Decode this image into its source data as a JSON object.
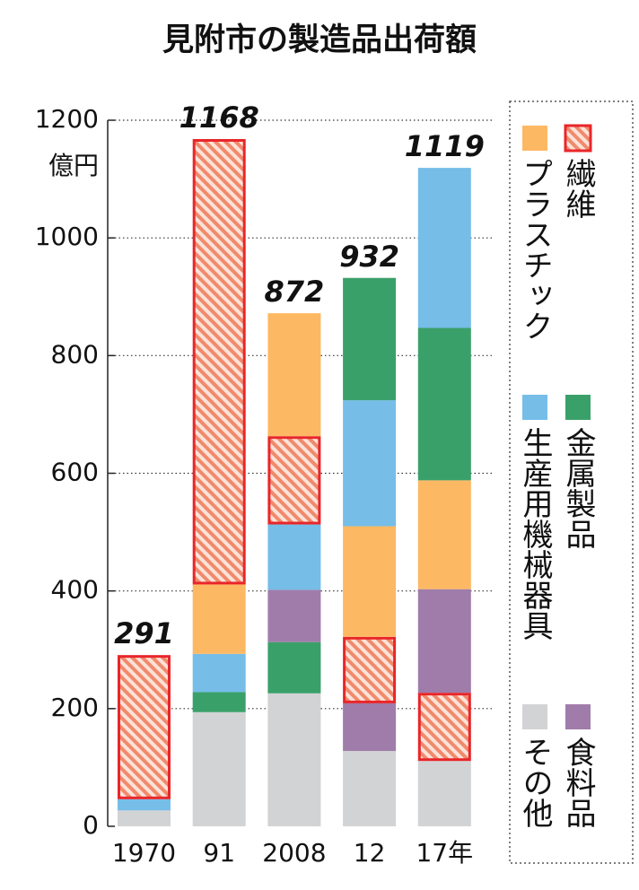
{
  "chart_data": {
    "type": "stacked_bar",
    "title": "見附市の製造品出荷額",
    "y_unit": "億円",
    "categories": [
      "1970",
      "91",
      "2008",
      "12",
      "17年"
    ],
    "series": [
      {
        "name": "繊維",
        "color": "#e8262a",
        "pattern": "hatch",
        "values": [
          245,
          757,
          150,
          113,
          116
        ]
      },
      {
        "name": "プラスチック",
        "color": "#fdb863",
        "values": [
          null,
          118,
          209,
          188,
          185
        ]
      },
      {
        "name": "金属製品",
        "color": "#3aa06a",
        "values": [
          null,
          34,
          87,
          208,
          259
        ]
      },
      {
        "name": "生産用機械器具",
        "color": "#76bde8",
        "values": [
          19,
          65,
          111,
          214,
          272
        ]
      },
      {
        "name": "食料品",
        "color": "#a07cab",
        "values": [
          null,
          null,
          89,
          81,
          176
        ]
      },
      {
        "name": "その他",
        "color": "#d2d3d5",
        "values": [
          27,
          194,
          226,
          128,
          111
        ]
      }
    ],
    "stack_order": [
      [
        5,
        3,
        0
      ],
      [
        5,
        2,
        3,
        1,
        0
      ],
      [
        5,
        2,
        4,
        3,
        0,
        1
      ],
      [
        5,
        4,
        0,
        1,
        3,
        2
      ],
      [
        5,
        0,
        4,
        1,
        2,
        3
      ]
    ],
    "totals": [
      291,
      1168,
      872,
      932,
      1119
    ],
    "ylim": [
      0,
      1200
    ],
    "yticks": [
      0,
      200,
      400,
      600,
      800,
      1000,
      1200
    ],
    "grid": true
  }
}
